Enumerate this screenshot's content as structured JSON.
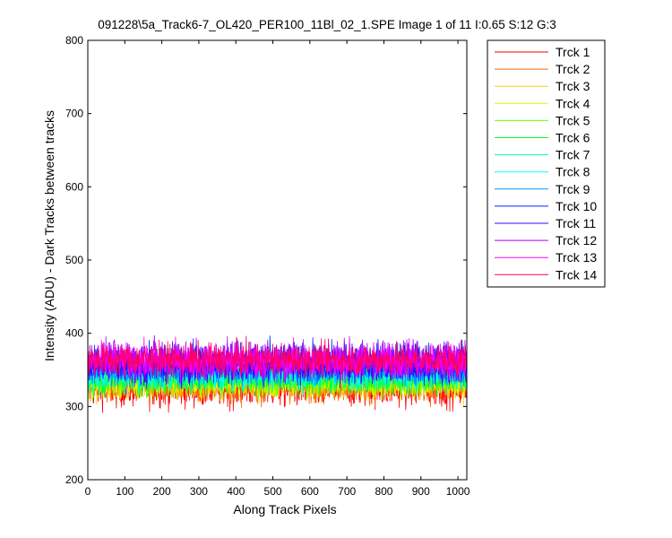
{
  "chart_data": {
    "type": "line",
    "title": "091228\\5a_Track6-7_OL420_PER100_11Bl_02_1.SPE  Image 1 of 11  I:0.65  S:12  G:3",
    "xlabel": "Along Track Pixels",
    "ylabel": "Intensity (ADU) - Dark Tracks between tracks",
    "xlim": [
      0,
      1024
    ],
    "ylim": [
      200,
      800
    ],
    "xticks": [
      0,
      100,
      200,
      300,
      400,
      500,
      600,
      700,
      800,
      900,
      1000
    ],
    "yticks": [
      200,
      300,
      400,
      500,
      600,
      700,
      800
    ],
    "grid": false,
    "legend_position": "outside-top-right",
    "n_points": 1024,
    "series": [
      {
        "name": "Trck 1",
        "color": "#ff0000",
        "mean": 325,
        "noise": 13
      },
      {
        "name": "Trck 2",
        "color": "#ff6a00",
        "mean": 329,
        "noise": 12
      },
      {
        "name": "Trck 3",
        "color": "#ffd000",
        "mean": 332,
        "noise": 11
      },
      {
        "name": "Trck 4",
        "color": "#d4ff00",
        "mean": 334,
        "noise": 11
      },
      {
        "name": "Trck 5",
        "color": "#6aff00",
        "mean": 337,
        "noise": 11
      },
      {
        "name": "Trck 6",
        "color": "#00ff2a",
        "mean": 340,
        "noise": 11
      },
      {
        "name": "Trck 7",
        "color": "#00ff95",
        "mean": 343,
        "noise": 11
      },
      {
        "name": "Trck 8",
        "color": "#00ffff",
        "mean": 346,
        "noise": 11
      },
      {
        "name": "Trck 9",
        "color": "#0095ff",
        "mean": 349,
        "noise": 11
      },
      {
        "name": "Trck 10",
        "color": "#002aff",
        "mean": 362,
        "noise": 13
      },
      {
        "name": "Trck 11",
        "color": "#4000ff",
        "mean": 356,
        "noise": 12
      },
      {
        "name": "Trck 12",
        "color": "#aa00ff",
        "mean": 365,
        "noise": 13
      },
      {
        "name": "Trck 13",
        "color": "#ff00ff",
        "mean": 362,
        "noise": 12
      },
      {
        "name": "Trck 14",
        "color": "#ff0060",
        "mean": 364,
        "noise": 11
      }
    ]
  }
}
